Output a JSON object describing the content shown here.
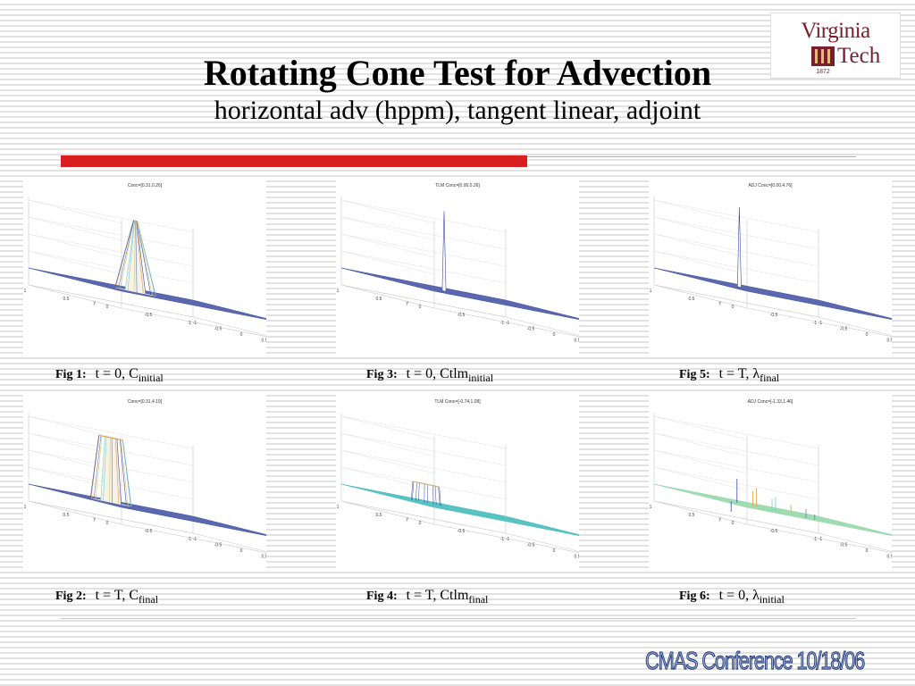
{
  "slide": {
    "title": "Rotating Cone Test for Advection",
    "subtitle": "horizontal adv (hppm), tangent linear, adjoint",
    "footer": "CMAS Conference 10/18/06",
    "accent_color": "#d81e1e"
  },
  "logo": {
    "line1": "Virginia",
    "line2": "Tech",
    "year": "1872",
    "icon": "university-shield-logo"
  },
  "figures": [
    {
      "id": "fig1",
      "label": "Fig 1:",
      "caption_main": "t = 0, C",
      "caption_sub": "initial",
      "plot_title": "Conc=[0.31,0.26]",
      "shape": "cone",
      "mesh_color": "#3a4aa0"
    },
    {
      "id": "fig2",
      "label": "Fig 2:",
      "caption_main": "t = T, C",
      "caption_sub": "final",
      "plot_title": "Conc=[0.31,4.19]",
      "shape": "cone-flat",
      "mesh_color": "#3a4aa0"
    },
    {
      "id": "fig3",
      "label": "Fig 3:",
      "caption_main": "t = 0, Ctlm",
      "caption_sub": "initial",
      "plot_title": "TLM Conc=[0.00,0.26]",
      "shape": "spike",
      "mesh_color": "#3a4aa0"
    },
    {
      "id": "fig4",
      "label": "Fig 4:",
      "caption_main": "t = T, Ctlm",
      "caption_sub": "final",
      "plot_title": "TLM Conc=[-0.74,1.08]",
      "shape": "small-bump",
      "mesh_color": "#3fb9b9"
    },
    {
      "id": "fig5",
      "label": "Fig 5:",
      "caption_main": "t = T, λ",
      "caption_sub": "final",
      "plot_title": "ADJ Conc=[0.00,4.76]",
      "shape": "spike",
      "mesh_color": "#3a4aa0"
    },
    {
      "id": "fig6",
      "label": "Fig 6:",
      "caption_main": "t = 0, λ",
      "caption_sub": "initial",
      "plot_title": "ADJ Conc=[-1.33,1.46]",
      "shape": "noisy",
      "mesh_color": "#8fd6a8"
    }
  ],
  "axes": {
    "z_ticks": [
      "4",
      "3",
      "2",
      "1",
      "0",
      "-1"
    ],
    "x_ticks": [
      "-1",
      "-0.5",
      "0",
      "0.5",
      "1"
    ],
    "y_ticks": [
      "1",
      "0.5",
      "0",
      "-0.5",
      "-1"
    ],
    "x_label": "x",
    "y_label": "y"
  }
}
